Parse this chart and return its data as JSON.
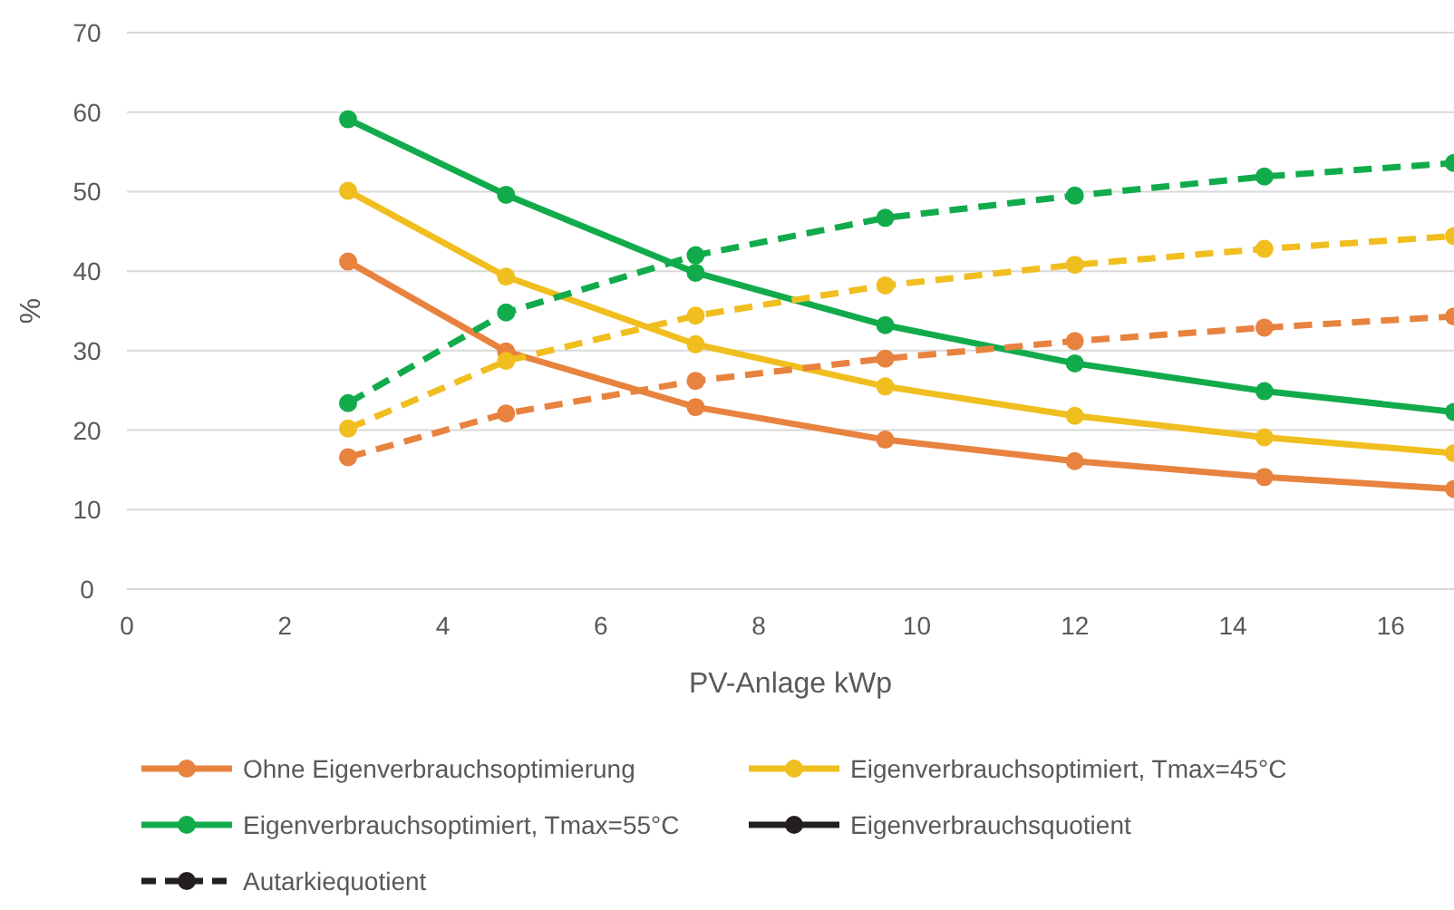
{
  "chart_data": {
    "type": "line",
    "xlabel": "PV-Anlage kWp",
    "ylabel": "%",
    "x": [
      2.8,
      4.8,
      7.2,
      9.6,
      12,
      14.4,
      16.8
    ],
    "xlim": [
      0,
      16.8
    ],
    "xticks": [
      0,
      2,
      4,
      6,
      8,
      10,
      12,
      14,
      16
    ],
    "ylim": [
      0,
      70
    ],
    "yticks": [
      0,
      10,
      20,
      30,
      40,
      50,
      60,
      70
    ],
    "grid": "y",
    "legend": "bottom",
    "marker": "circle",
    "series": [
      {
        "name": "Ohne Eigenverbrauchsoptimierung",
        "color": "#e8823f",
        "line_style": "solid",
        "values": [
          41.2,
          29.9,
          22.9,
          18.8,
          16.1,
          14.1,
          12.6
        ]
      },
      {
        "name": "Eigenverbrauchsoptimiert, Tmax=45°C",
        "color": "#f0be1e",
        "line_style": "solid",
        "values": [
          50.1,
          39.3,
          30.8,
          25.5,
          21.8,
          19.1,
          17.1
        ]
      },
      {
        "name": "Eigenverbrauchsoptimiert, Tmax=55°C",
        "color": "#12ab4c",
        "line_style": "solid",
        "values": [
          59.1,
          49.6,
          39.8,
          33.2,
          28.4,
          24.9,
          22.3
        ]
      },
      {
        "name": "Eigenverbrauchsquotient",
        "color": "#231f20",
        "line_style": "solid",
        "values": [
          null,
          null,
          null,
          null,
          null,
          null,
          null
        ]
      },
      {
        "name": "Autarkiequotient",
        "color": "#231f20",
        "line_style": "dashed",
        "values": [
          null,
          null,
          null,
          null,
          null,
          null,
          null
        ]
      },
      {
        "color": "#e8823f",
        "line_style": "dashed",
        "values": [
          16.6,
          22.1,
          26.2,
          29.0,
          31.2,
          32.9,
          34.3
        ]
      },
      {
        "color": "#f0be1e",
        "line_style": "dashed",
        "values": [
          20.2,
          28.7,
          34.4,
          38.2,
          40.8,
          42.8,
          44.4
        ]
      },
      {
        "color": "#12ab4c",
        "line_style": "dashed",
        "values": [
          23.4,
          34.8,
          42.0,
          46.7,
          49.5,
          51.9,
          53.6
        ]
      }
    ]
  }
}
